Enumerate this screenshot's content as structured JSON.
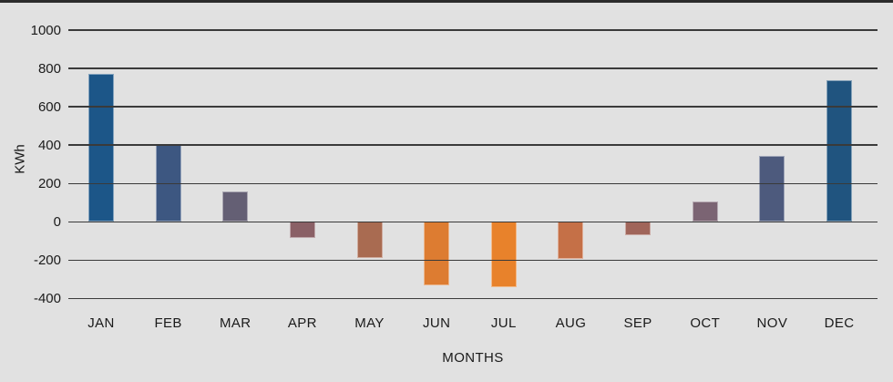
{
  "window": {
    "background_color": "#e1e1e1",
    "top_edge_color": "#2b2b2b"
  },
  "chart_data": {
    "type": "bar",
    "title": "",
    "xlabel": "MONTHS",
    "ylabel": "KWh",
    "categories": [
      "JAN",
      "FEB",
      "MAR",
      "APR",
      "MAY",
      "JUN",
      "JUL",
      "AUG",
      "SEP",
      "OCT",
      "NOV",
      "DEC"
    ],
    "values": [
      770,
      400,
      160,
      -85,
      -190,
      -330,
      -340,
      -195,
      -70,
      105,
      345,
      740
    ],
    "bar_colors": [
      "#1c5688",
      "#3d5781",
      "#645f74",
      "#8a6066",
      "#a96b51",
      "#dd7c31",
      "#e8822b",
      "#c57047",
      "#a0655a",
      "#7b6473",
      "#4d5a7d",
      "#20547f"
    ],
    "ylim": [
      -400,
      1000
    ],
    "yticks": [
      1000,
      800,
      600,
      400,
      200,
      0,
      -200,
      -400
    ],
    "grid": true,
    "gridlines_over_bars": true,
    "legend": false,
    "gridline_color": "#3a3a3a",
    "text_color": "#1a1a1a"
  }
}
